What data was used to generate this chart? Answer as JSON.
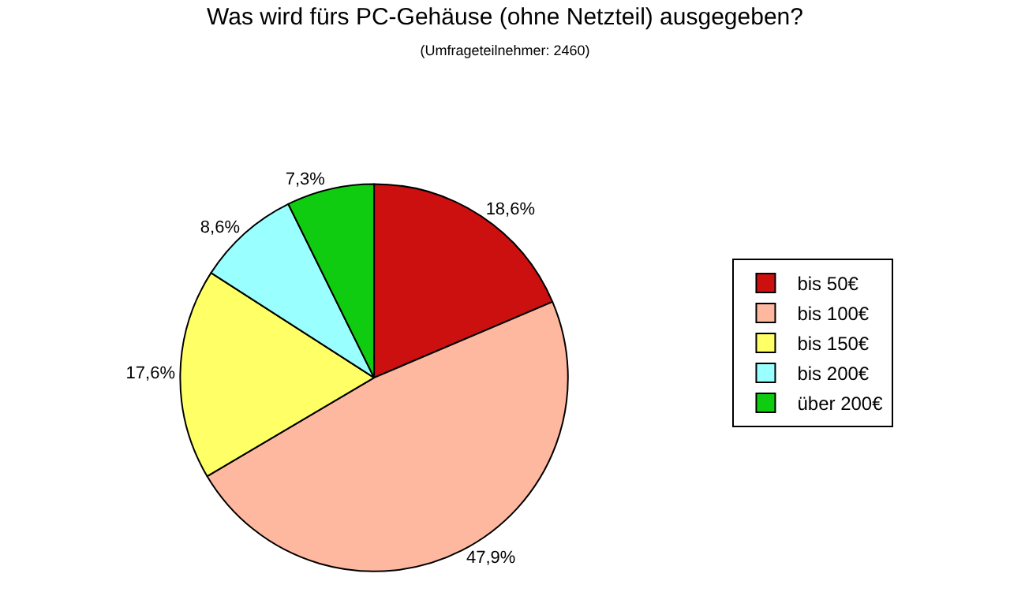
{
  "chart_data": {
    "type": "pie",
    "title": "Was wird fürs PC-Gehäuse (ohne Netzteil) ausgegeben?",
    "subtitle": "(Umfrageteilnehmer: 2460)",
    "categories": [
      "bis 50€",
      "bis 100€",
      "bis 150€",
      "bis 200€",
      "über 200€"
    ],
    "values": [
      18.6,
      47.9,
      17.6,
      8.6,
      7.3
    ],
    "value_labels": [
      "18,6%",
      "47,9%",
      "17,6%",
      "8,6%",
      "7,3%"
    ],
    "colors": [
      "#cc1010",
      "#ffb8a0",
      "#ffff66",
      "#99ffff",
      "#10cc10"
    ],
    "legend": "right"
  }
}
